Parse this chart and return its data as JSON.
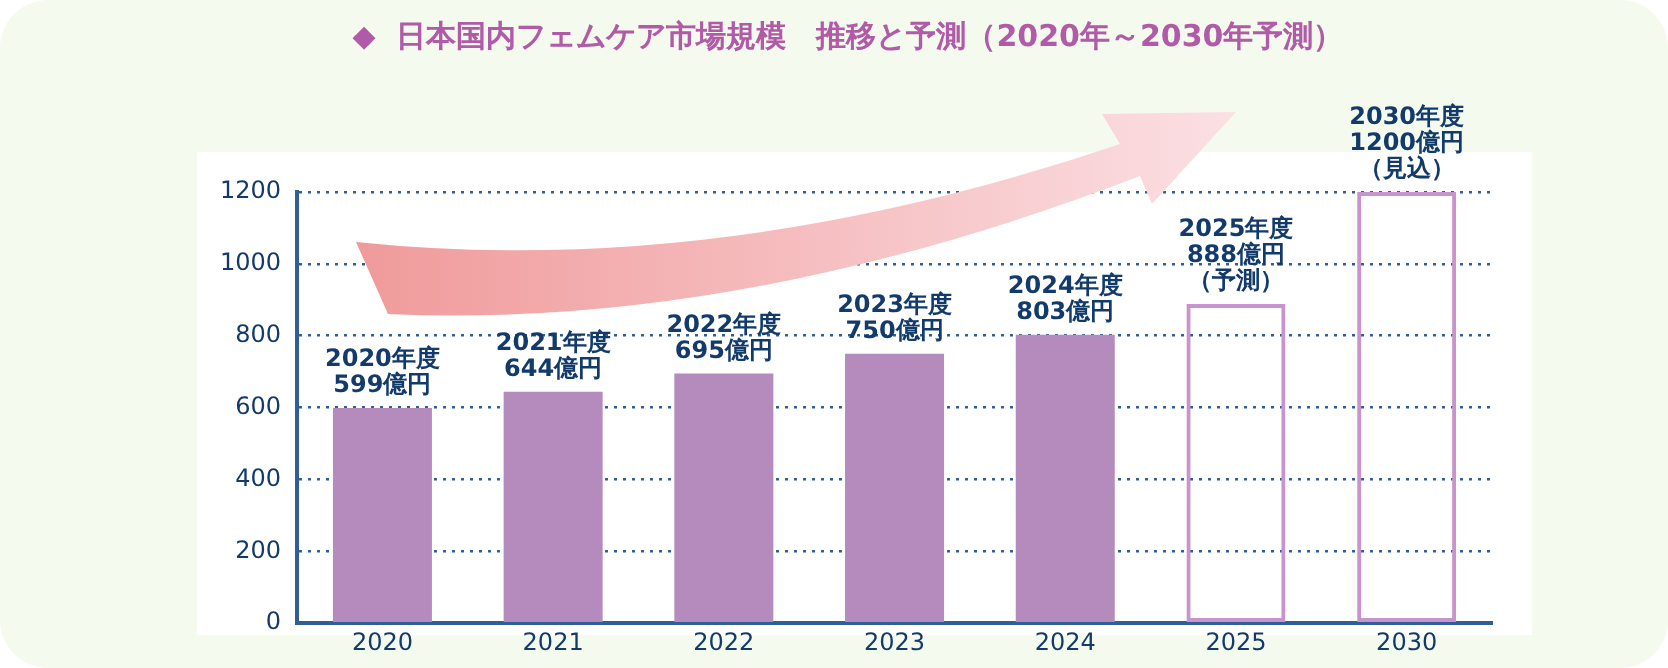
{
  "chart_data": {
    "type": "bar",
    "title": "◆  日本国内フェムケア市場規模　推移と予測（2020年～2030年予測）",
    "categories": [
      "2020",
      "2021",
      "2022",
      "2023",
      "2024",
      "2025",
      "2030"
    ],
    "series": [
      {
        "color": "#b58bbd",
        "values": [
          599,
          644,
          695,
          750,
          803,
          null,
          null
        ]
      },
      {
        "color": "#c994cd",
        "values": [
          null,
          null,
          null,
          null,
          null,
          888,
          1200
        ],
        "line_style": "dashed"
      }
    ],
    "stacked": true,
    "value_labels": [
      "2020年度599億円",
      "2021年度644億円",
      "2022年度695億円",
      "2023年度750億円",
      "2024年度803億円",
      "2025年度888億円（予測）",
      "2030年度1200億円（見込）"
    ],
    "ylim": [
      0,
      1200
    ],
    "yticks": [
      0,
      200,
      400,
      600,
      800,
      1000,
      1200
    ],
    "grid": "y",
    "legend": false
  }
}
